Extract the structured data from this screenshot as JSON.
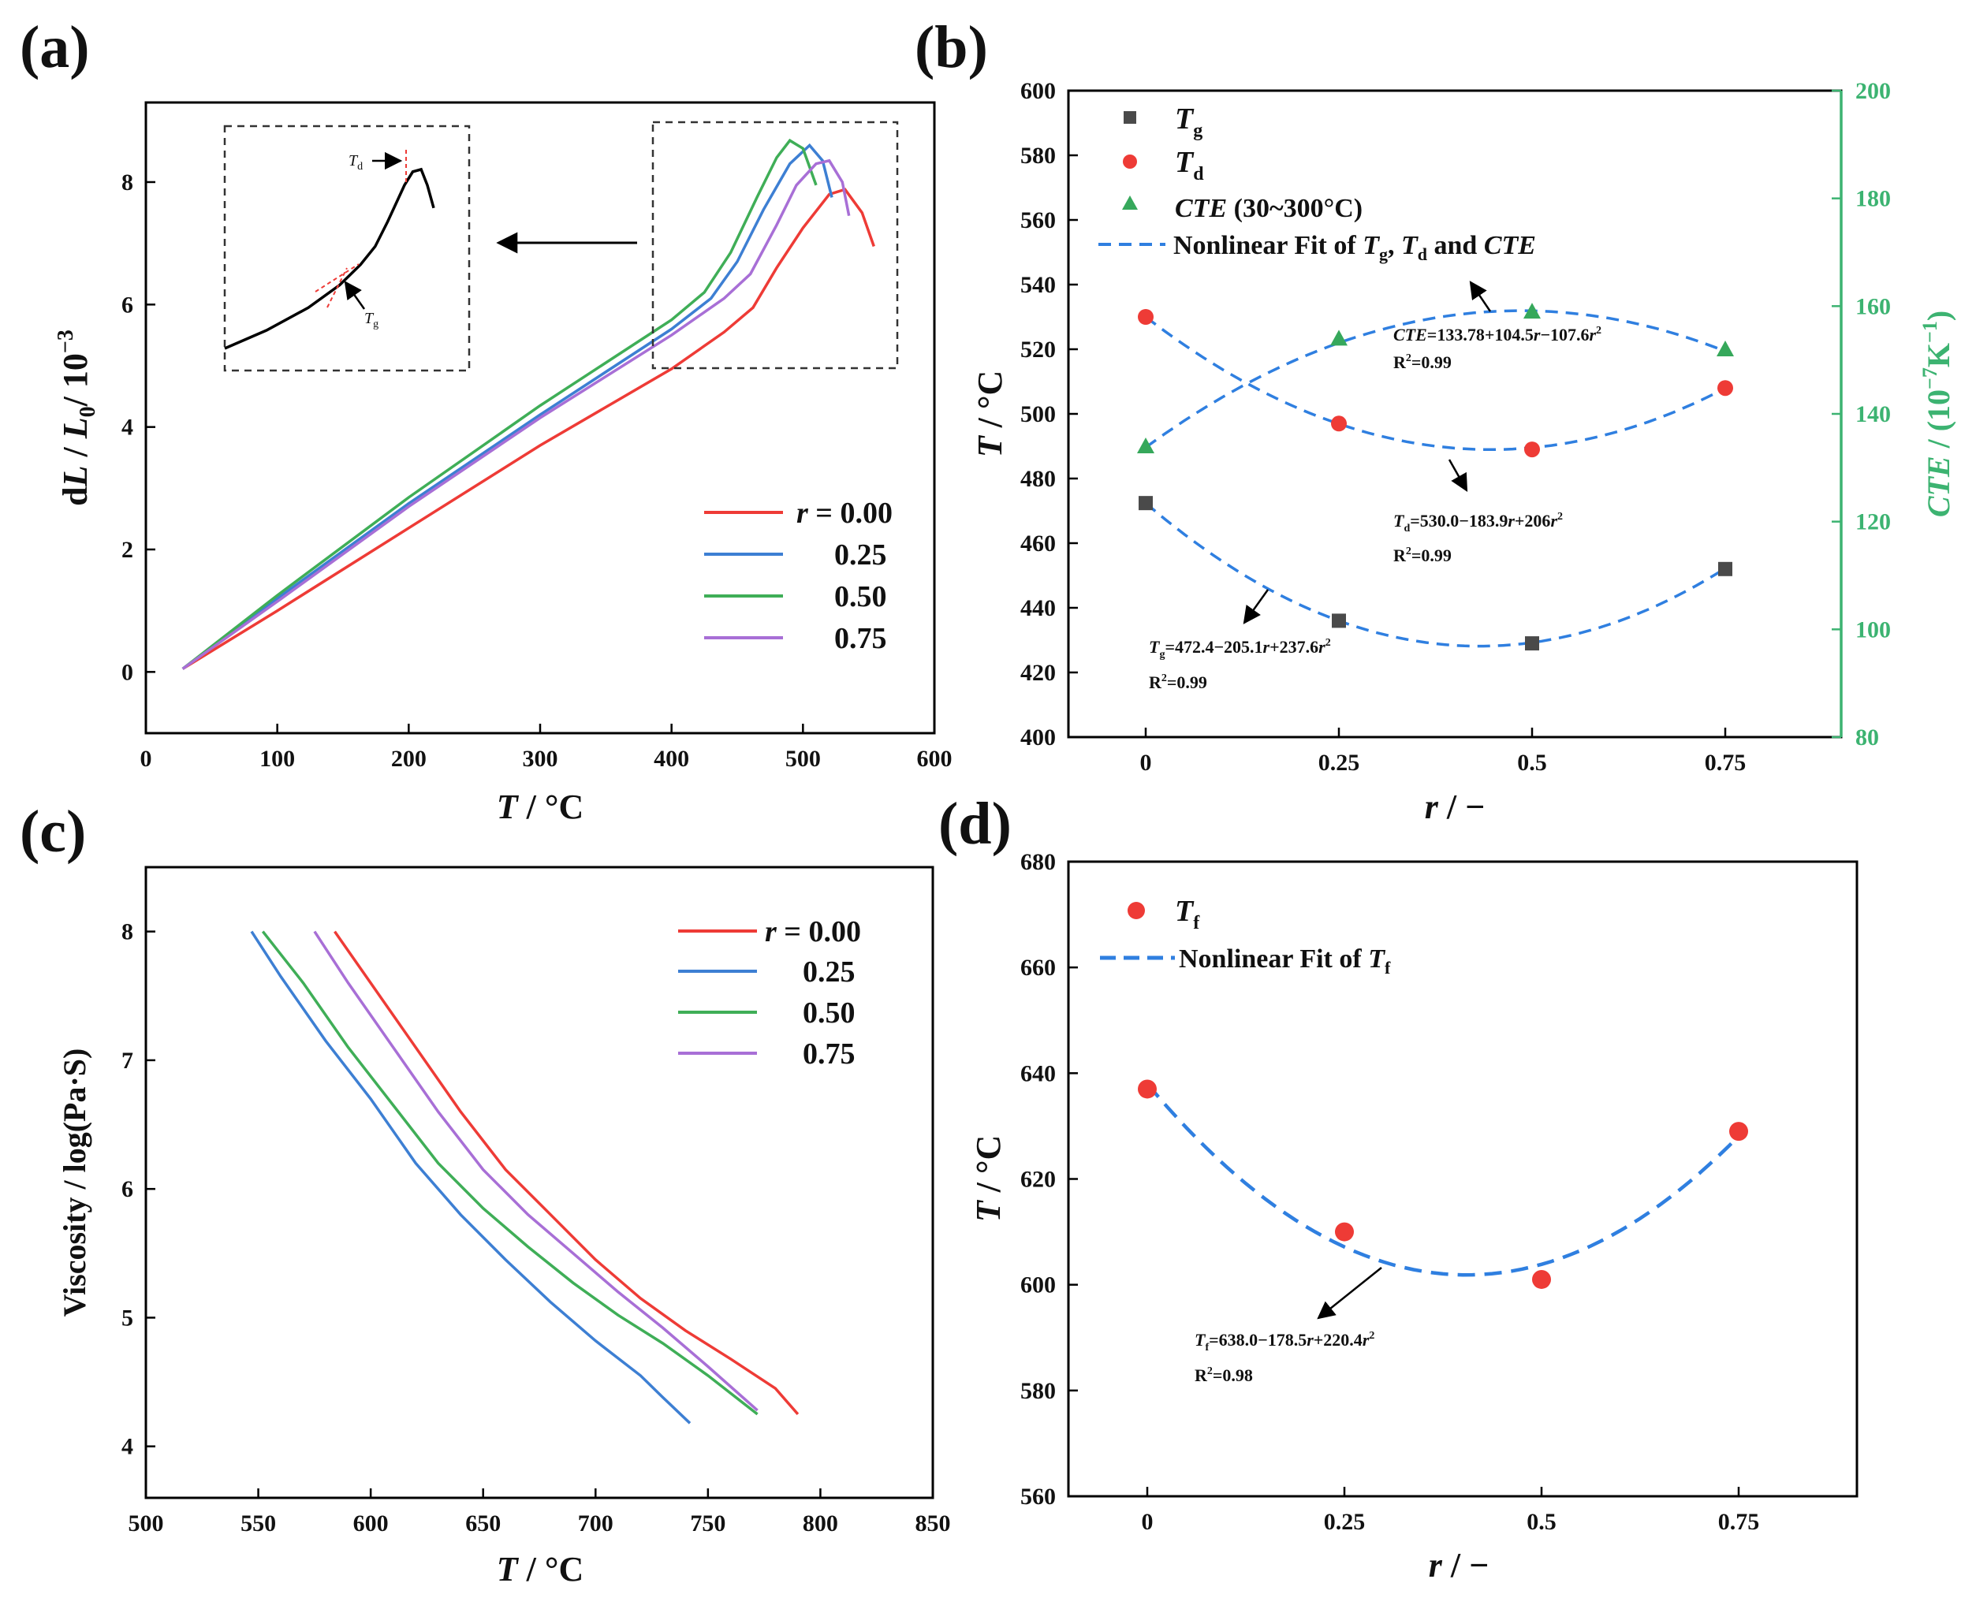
{
  "palette": {
    "r000": "#ee3b36",
    "r025": "#3d7fd3",
    "r050": "#3fae57",
    "r075": "#a86fd6",
    "fit": "#2f7fe0",
    "cte_axis": "#3cb371",
    "tg_marker": "#4a4a4a",
    "td_marker": "#ee3b36",
    "cte_marker": "#36a85b",
    "tf_marker": "#ee3b36",
    "inset": "#000000"
  },
  "chart_data": [
    {
      "panel_label": "(a)",
      "type": "line",
      "xlabel": {
        "sym": "T",
        "unit": " / °C"
      },
      "ylabel": {
        "pre": "d",
        "l": "L",
        "mid": " / ",
        "l0": "L",
        "sub0": "0",
        "tail": "/ 10",
        "exp": "−3"
      },
      "xlim": [
        0,
        600
      ],
      "ylim": [
        -1,
        9.3
      ],
      "xticks": [
        "0",
        "100",
        "200",
        "300",
        "400",
        "500",
        "600"
      ],
      "yticks": [
        "0",
        "2",
        "4",
        "6",
        "8"
      ],
      "legend": {
        "position": "center-right",
        "title_sym": "r",
        "title_rest": " = 0.00",
        "entries": [
          "0.25",
          "0.50",
          "0.75"
        ]
      },
      "series": [
        {
          "name": "0.00",
          "color_key": "r000",
          "x": [
            28,
            100,
            200,
            300,
            400,
            440,
            462,
            480,
            500,
            520,
            532,
            545,
            554
          ],
          "y": [
            0.05,
            1.0,
            2.35,
            3.7,
            4.95,
            5.55,
            5.95,
            6.6,
            7.25,
            7.8,
            7.88,
            7.5,
            6.95
          ]
        },
        {
          "name": "0.25",
          "color_key": "r025",
          "x": [
            28,
            100,
            200,
            300,
            400,
            430,
            450,
            470,
            490,
            505,
            515,
            522
          ],
          "y": [
            0.05,
            1.2,
            2.75,
            4.2,
            5.6,
            6.1,
            6.7,
            7.55,
            8.3,
            8.6,
            8.35,
            7.75
          ]
        },
        {
          "name": "0.50",
          "color_key": "r050",
          "x": [
            28,
            100,
            200,
            300,
            400,
            425,
            445,
            465,
            480,
            490,
            500,
            510
          ],
          "y": [
            0.05,
            1.25,
            2.85,
            4.35,
            5.75,
            6.2,
            6.85,
            7.75,
            8.4,
            8.68,
            8.55,
            7.95
          ]
        },
        {
          "name": "0.75",
          "color_key": "r075",
          "x": [
            28,
            100,
            200,
            300,
            400,
            440,
            460,
            480,
            495,
            510,
            520,
            530,
            535
          ],
          "y": [
            0.05,
            1.15,
            2.7,
            4.15,
            5.5,
            6.1,
            6.5,
            7.3,
            7.95,
            8.3,
            8.35,
            8.0,
            7.45
          ]
        }
      ],
      "inset": {
        "x": [
          0,
          20,
          40,
          55,
          65,
          72,
          78,
          82,
          86,
          90,
          94,
          97,
          100
        ],
        "y": [
          0,
          8,
          18,
          28,
          37,
          45,
          56,
          64,
          72,
          78,
          79,
          72,
          62
        ],
        "labels": {
          "td": "T",
          "td_sub": "d",
          "tg": "T",
          "tg_sub": "g"
        }
      }
    },
    {
      "panel_label": "(b)",
      "type": "scatter",
      "xlabel": {
        "sym": "r",
        "unit": " / −"
      },
      "ylabel": {
        "sym": "T",
        "unit": " / °C"
      },
      "ylabel_right": {
        "sym": "CTE",
        "unit": " / (10",
        "exp": "−7",
        "tail": "K",
        "exp2": "−1",
        "close": ")"
      },
      "xlim": [
        -0.1,
        0.9
      ],
      "ylim": [
        400,
        600
      ],
      "ylim_right": [
        80,
        200
      ],
      "xticks": [
        "0",
        "0.25",
        "0.5",
        "0.75"
      ],
      "yticks": [
        "400",
        "420",
        "440",
        "460",
        "480",
        "500",
        "520",
        "540",
        "560",
        "580",
        "600"
      ],
      "yticks_right": [
        "80",
        "100",
        "120",
        "140",
        "160",
        "180",
        "200"
      ],
      "legend": {
        "position": "top-left",
        "tg": {
          "sym": "T",
          "sub": "g"
        },
        "td": {
          "sym": "T",
          "sub": "d"
        },
        "cte": {
          "sym": "CTE",
          "rest": " (30~300°C)"
        },
        "fit": {
          "a": "Nonlinear Fit of ",
          "b": "T",
          "b_sub": "g",
          "c": ", ",
          "d": "T",
          "d_sub": "d",
          "e": " and ",
          "f": "CTE"
        }
      },
      "x": [
        0,
        0.25,
        0.5,
        0.75
      ],
      "Tg": [
        472.4,
        436,
        429,
        452
      ],
      "Td": [
        530,
        497,
        489,
        508
      ],
      "CTE": [
        134,
        154,
        159,
        152
      ],
      "annotations": {
        "cte": {
          "f": "CTE",
          "eq": "=133.78+104.5",
          "r": "r",
          "m": "−107.6",
          "r2": "r",
          "sq": "2",
          "rr": "R",
          "rsq": "2",
          "rv": "=0.99"
        },
        "td": {
          "f": "T",
          "sub": "d",
          "eq": "=530.0−183.9",
          "r": "r",
          "m": "+206",
          "r2": "r",
          "sq": "2",
          "rr": "R",
          "rsq": "2",
          "rv": "=0.99"
        },
        "tg": {
          "f": "T",
          "sub": "g",
          "eq": "=472.4−205.1",
          "r": "r",
          "m": "+237.6",
          "r2": "r",
          "sq": "2",
          "rr": "R",
          "rsq": "2",
          "rv": "=0.99"
        }
      }
    },
    {
      "panel_label": "(c)",
      "type": "line",
      "xlabel": {
        "sym": "T",
        "unit": " / °C"
      },
      "ylabel": "Viscosity / log(Pa·S)",
      "xlim": [
        500,
        850
      ],
      "ylim": [
        3.6,
        8.5
      ],
      "xticks": [
        "500",
        "550",
        "600",
        "650",
        "700",
        "750",
        "800",
        "850"
      ],
      "yticks": [
        "4",
        "5",
        "6",
        "7",
        "8"
      ],
      "legend": {
        "position": "top-right",
        "title_sym": "r",
        "title_rest": " = 0.00",
        "entries": [
          "0.25",
          "0.50",
          "0.75"
        ]
      },
      "series": [
        {
          "name": "0.00",
          "color_key": "r000",
          "x": [
            584,
            600,
            620,
            640,
            660,
            680,
            700,
            720,
            740,
            760,
            780,
            790
          ],
          "y": [
            8.0,
            7.6,
            7.1,
            6.6,
            6.15,
            5.8,
            5.45,
            5.15,
            4.9,
            4.68,
            4.45,
            4.25
          ]
        },
        {
          "name": "0.25",
          "color_key": "r025",
          "x": [
            547,
            560,
            580,
            600,
            620,
            640,
            660,
            680,
            700,
            720,
            730,
            742
          ],
          "y": [
            8.0,
            7.65,
            7.15,
            6.7,
            6.2,
            5.8,
            5.45,
            5.12,
            4.82,
            4.55,
            4.38,
            4.18
          ]
        },
        {
          "name": "0.50",
          "color_key": "r050",
          "x": [
            552,
            570,
            590,
            610,
            630,
            650,
            670,
            690,
            710,
            730,
            750,
            772
          ],
          "y": [
            8.0,
            7.6,
            7.1,
            6.65,
            6.2,
            5.85,
            5.55,
            5.27,
            5.02,
            4.8,
            4.55,
            4.25
          ]
        },
        {
          "name": "0.75",
          "color_key": "r075",
          "x": [
            575,
            590,
            610,
            630,
            650,
            670,
            690,
            710,
            730,
            750,
            772
          ],
          "y": [
            8.0,
            7.6,
            7.1,
            6.6,
            6.15,
            5.8,
            5.5,
            5.2,
            4.92,
            4.62,
            4.28
          ]
        }
      ]
    },
    {
      "panel_label": "(d)",
      "type": "scatter",
      "xlabel": {
        "sym": "r",
        "unit": " / −"
      },
      "ylabel": {
        "sym": "T",
        "unit": " / °C"
      },
      "xlim": [
        -0.1,
        0.9
      ],
      "ylim": [
        560,
        680
      ],
      "xticks": [
        "0",
        "0.25",
        "0.5",
        "0.75"
      ],
      "yticks": [
        "560",
        "580",
        "600",
        "620",
        "640",
        "660",
        "680"
      ],
      "legend": {
        "position": "top-left",
        "tf": {
          "sym": "T",
          "sub": "f"
        },
        "fit": {
          "a": "Nonlinear Fit of ",
          "b": "T",
          "b_sub": "f"
        }
      },
      "x": [
        0,
        0.25,
        0.5,
        0.75
      ],
      "Tf": [
        637,
        610,
        601,
        629
      ],
      "annotation": {
        "f": "T",
        "sub": "f",
        "eq": "=638.0−178.5",
        "r": "r",
        "m": "+220.4",
        "r2": "r",
        "sq": "2",
        "rr": "R",
        "rsq": "2",
        "rv": "=0.98"
      }
    }
  ]
}
